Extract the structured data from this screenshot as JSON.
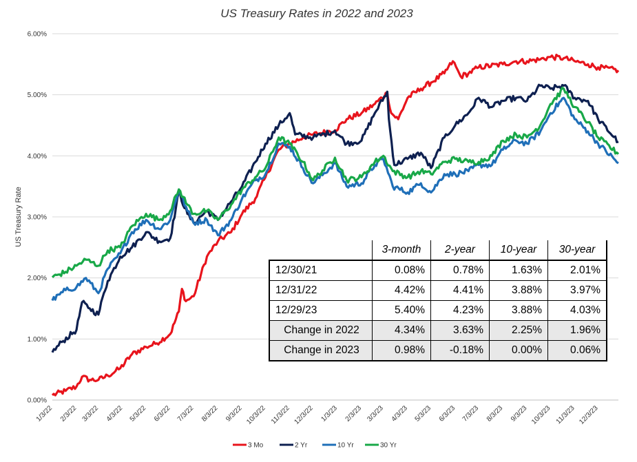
{
  "chart_data": {
    "type": "line",
    "title": "US Treasury Rates in 2022 and 2023",
    "ylabel": "US Treasury Rate",
    "xlabel": "",
    "ylim": [
      0,
      6
    ],
    "y_ticks": [
      "0.00%",
      "1.00%",
      "2.00%",
      "3.00%",
      "4.00%",
      "5.00%",
      "6.00%"
    ],
    "x_ticks": [
      "1/3/22",
      "2/3/22",
      "3/3/22",
      "4/3/22",
      "5/3/22",
      "6/3/22",
      "7/3/22",
      "8/3/22",
      "9/3/22",
      "10/3/22",
      "11/3/22",
      "12/3/22",
      "1/3/23",
      "2/3/23",
      "3/3/23",
      "4/3/23",
      "5/3/23",
      "6/3/23",
      "7/3/23",
      "8/3/23",
      "9/3/23",
      "10/3/23",
      "11/3/23",
      "12/3/23"
    ],
    "x_range": [
      "1/3/22",
      "12/29/23"
    ],
    "grid": "horizontal",
    "legend_position": "bottom",
    "series": [
      {
        "name": "3 Mo",
        "color": "#e8141c",
        "points": [
          [
            "1/3/22",
            0.08
          ],
          [
            "1/20/22",
            0.15
          ],
          [
            "2/3/22",
            0.22
          ],
          [
            "2/10/22",
            0.38
          ],
          [
            "2/20/22",
            0.33
          ],
          [
            "3/3/22",
            0.33
          ],
          [
            "3/15/22",
            0.4
          ],
          [
            "3/31/22",
            0.52
          ],
          [
            "4/15/22",
            0.75
          ],
          [
            "5/3/22",
            0.87
          ],
          [
            "5/15/22",
            0.92
          ],
          [
            "6/3/22",
            1.08
          ],
          [
            "6/14/22",
            1.45
          ],
          [
            "6/18/22",
            1.82
          ],
          [
            "6/23/22",
            1.62
          ],
          [
            "7/3/22",
            1.7
          ],
          [
            "7/20/22",
            2.35
          ],
          [
            "8/3/22",
            2.6
          ],
          [
            "8/20/22",
            2.75
          ],
          [
            "9/3/22",
            3.05
          ],
          [
            "9/20/22",
            3.3
          ],
          [
            "10/3/22",
            3.65
          ],
          [
            "10/20/22",
            4.1
          ],
          [
            "11/3/22",
            4.2
          ],
          [
            "11/20/22",
            4.3
          ],
          [
            "12/3/22",
            4.35
          ],
          [
            "12/31/22",
            4.42
          ],
          [
            "1/15/23",
            4.6
          ],
          [
            "2/3/23",
            4.7
          ],
          [
            "2/20/23",
            4.85
          ],
          [
            "3/8/23",
            5.03
          ],
          [
            "3/13/23",
            4.7
          ],
          [
            "3/22/23",
            4.6
          ],
          [
            "4/3/23",
            4.95
          ],
          [
            "4/20/23",
            5.1
          ],
          [
            "5/3/23",
            5.2
          ],
          [
            "5/20/23",
            5.35
          ],
          [
            "5/31/23",
            5.55
          ],
          [
            "6/10/23",
            5.3
          ],
          [
            "6/20/23",
            5.35
          ],
          [
            "7/3/23",
            5.45
          ],
          [
            "8/3/23",
            5.5
          ],
          [
            "8/20/23",
            5.55
          ],
          [
            "9/3/23",
            5.55
          ],
          [
            "9/20/23",
            5.58
          ],
          [
            "10/3/23",
            5.62
          ],
          [
            "10/20/23",
            5.6
          ],
          [
            "11/3/23",
            5.55
          ],
          [
            "11/20/23",
            5.5
          ],
          [
            "12/3/23",
            5.45
          ],
          [
            "12/29/23",
            5.4
          ]
        ]
      },
      {
        "name": "2 Yr",
        "color": "#0e2050",
        "points": [
          [
            "1/3/22",
            0.78
          ],
          [
            "1/15/22",
            0.95
          ],
          [
            "2/3/22",
            1.15
          ],
          [
            "2/10/22",
            1.6
          ],
          [
            "2/20/22",
            1.5
          ],
          [
            "3/3/22",
            1.4
          ],
          [
            "3/10/22",
            1.75
          ],
          [
            "3/15/22",
            1.95
          ],
          [
            "3/31/22",
            2.35
          ],
          [
            "4/15/22",
            2.5
          ],
          [
            "5/3/22",
            2.75
          ],
          [
            "5/20/22",
            2.6
          ],
          [
            "6/3/22",
            2.65
          ],
          [
            "6/14/22",
            3.4
          ],
          [
            "6/25/22",
            3.05
          ],
          [
            "7/3/22",
            2.9
          ],
          [
            "7/20/22",
            3.1
          ],
          [
            "8/3/22",
            2.95
          ],
          [
            "8/20/22",
            3.25
          ],
          [
            "9/3/22",
            3.5
          ],
          [
            "9/20/22",
            3.9
          ],
          [
            "10/3/22",
            4.2
          ],
          [
            "10/20/22",
            4.5
          ],
          [
            "11/3/22",
            4.7
          ],
          [
            "11/10/22",
            4.35
          ],
          [
            "12/3/22",
            4.3
          ],
          [
            "12/31/22",
            4.41
          ],
          [
            "1/15/23",
            4.2
          ],
          [
            "2/3/23",
            4.25
          ],
          [
            "2/20/23",
            4.7
          ],
          [
            "3/8/23",
            5.05
          ],
          [
            "3/10/23",
            4.6
          ],
          [
            "3/17/23",
            3.85
          ],
          [
            "4/3/23",
            3.95
          ],
          [
            "4/20/23",
            4.05
          ],
          [
            "5/3/23",
            3.8
          ],
          [
            "5/20/23",
            4.3
          ],
          [
            "6/3/23",
            4.5
          ],
          [
            "6/20/23",
            4.7
          ],
          [
            "7/3/23",
            4.95
          ],
          [
            "7/20/23",
            4.8
          ],
          [
            "8/3/23",
            4.9
          ],
          [
            "8/20/23",
            4.95
          ],
          [
            "9/3/23",
            4.9
          ],
          [
            "9/20/23",
            5.15
          ],
          [
            "10/3/23",
            5.1
          ],
          [
            "10/20/23",
            5.15
          ],
          [
            "11/3/23",
            4.95
          ],
          [
            "11/20/23",
            4.9
          ],
          [
            "12/3/23",
            4.6
          ],
          [
            "12/29/23",
            4.23
          ]
        ]
      },
      {
        "name": "10 Yr",
        "color": "#1f6fb8",
        "points": [
          [
            "1/3/22",
            1.63
          ],
          [
            "1/20/22",
            1.8
          ],
          [
            "2/3/22",
            1.85
          ],
          [
            "2/15/22",
            2.0
          ],
          [
            "3/3/22",
            1.75
          ],
          [
            "3/15/22",
            2.15
          ],
          [
            "3/31/22",
            2.4
          ],
          [
            "4/15/22",
            2.75
          ],
          [
            "5/3/22",
            2.95
          ],
          [
            "5/20/22",
            2.8
          ],
          [
            "6/3/22",
            2.95
          ],
          [
            "6/14/22",
            3.45
          ],
          [
            "6/25/22",
            3.1
          ],
          [
            "7/3/22",
            2.9
          ],
          [
            "7/20/22",
            2.95
          ],
          [
            "8/3/22",
            2.7
          ],
          [
            "8/20/22",
            2.95
          ],
          [
            "9/3/22",
            3.3
          ],
          [
            "9/20/22",
            3.6
          ],
          [
            "10/3/22",
            3.7
          ],
          [
            "10/20/22",
            4.2
          ],
          [
            "11/3/22",
            4.15
          ],
          [
            "11/20/22",
            3.8
          ],
          [
            "12/3/22",
            3.55
          ],
          [
            "12/31/22",
            3.88
          ],
          [
            "1/15/23",
            3.5
          ],
          [
            "2/3/23",
            3.55
          ],
          [
            "2/20/23",
            3.85
          ],
          [
            "3/3/23",
            3.95
          ],
          [
            "3/15/23",
            3.5
          ],
          [
            "4/3/23",
            3.4
          ],
          [
            "4/20/23",
            3.55
          ],
          [
            "5/3/23",
            3.4
          ],
          [
            "5/20/23",
            3.7
          ],
          [
            "6/3/23",
            3.7
          ],
          [
            "6/20/23",
            3.75
          ],
          [
            "7/3/23",
            3.85
          ],
          [
            "7/20/23",
            3.85
          ],
          [
            "8/3/23",
            4.1
          ],
          [
            "8/20/23",
            4.25
          ],
          [
            "9/3/23",
            4.2
          ],
          [
            "9/20/23",
            4.4
          ],
          [
            "10/3/23",
            4.7
          ],
          [
            "10/20/23",
            4.95
          ],
          [
            "11/3/23",
            4.6
          ],
          [
            "11/20/23",
            4.4
          ],
          [
            "12/3/23",
            4.2
          ],
          [
            "12/29/23",
            3.88
          ]
        ]
      },
      {
        "name": "30 Yr",
        "color": "#18a848",
        "points": [
          [
            "1/3/22",
            2.01
          ],
          [
            "1/20/22",
            2.1
          ],
          [
            "2/3/22",
            2.2
          ],
          [
            "2/15/22",
            2.3
          ],
          [
            "3/3/22",
            2.2
          ],
          [
            "3/15/22",
            2.45
          ],
          [
            "3/31/22",
            2.5
          ],
          [
            "4/15/22",
            2.85
          ],
          [
            "5/3/22",
            3.05
          ],
          [
            "5/20/22",
            2.95
          ],
          [
            "6/3/22",
            3.1
          ],
          [
            "6/14/22",
            3.45
          ],
          [
            "6/25/22",
            3.2
          ],
          [
            "7/3/22",
            3.05
          ],
          [
            "7/20/22",
            3.1
          ],
          [
            "8/3/22",
            2.95
          ],
          [
            "8/20/22",
            3.2
          ],
          [
            "9/3/22",
            3.45
          ],
          [
            "9/20/22",
            3.65
          ],
          [
            "10/3/22",
            3.8
          ],
          [
            "10/20/22",
            4.3
          ],
          [
            "11/3/22",
            4.2
          ],
          [
            "11/20/22",
            3.9
          ],
          [
            "12/3/22",
            3.6
          ],
          [
            "12/31/22",
            3.97
          ],
          [
            "1/15/23",
            3.6
          ],
          [
            "2/3/23",
            3.65
          ],
          [
            "2/20/23",
            3.9
          ],
          [
            "3/3/23",
            4.0
          ],
          [
            "3/15/23",
            3.75
          ],
          [
            "4/3/23",
            3.65
          ],
          [
            "4/20/23",
            3.75
          ],
          [
            "5/3/23",
            3.7
          ],
          [
            "5/20/23",
            3.9
          ],
          [
            "6/3/23",
            3.95
          ],
          [
            "6/20/23",
            3.9
          ],
          [
            "7/3/23",
            3.9
          ],
          [
            "7/20/23",
            4.0
          ],
          [
            "8/3/23",
            4.25
          ],
          [
            "8/20/23",
            4.35
          ],
          [
            "9/3/23",
            4.3
          ],
          [
            "9/20/23",
            4.5
          ],
          [
            "10/3/23",
            4.85
          ],
          [
            "10/20/23",
            5.1
          ],
          [
            "11/3/23",
            4.8
          ],
          [
            "11/20/23",
            4.55
          ],
          [
            "12/3/23",
            4.3
          ],
          [
            "12/29/23",
            4.03
          ]
        ]
      }
    ]
  },
  "table": {
    "headers": [
      "",
      "3-month",
      "2-year",
      "10-year",
      "30-year"
    ],
    "rows": [
      {
        "label": "12/30/21",
        "values": [
          "0.08%",
          "0.78%",
          "1.63%",
          "2.01%"
        ],
        "shaded": false
      },
      {
        "label": "12/31/22",
        "values": [
          "4.42%",
          "4.41%",
          "3.88%",
          "3.97%"
        ],
        "shaded": false
      },
      {
        "label": "12/29/23",
        "values": [
          "5.40%",
          "4.23%",
          "3.88%",
          "4.03%"
        ],
        "shaded": false
      },
      {
        "label": "Change in 2022",
        "values": [
          "4.34%",
          "3.63%",
          "2.25%",
          "1.96%"
        ],
        "shaded": true
      },
      {
        "label": "Change in 2023",
        "values": [
          "0.98%",
          "-0.18%",
          "0.00%",
          "0.06%"
        ],
        "shaded": true
      }
    ]
  }
}
